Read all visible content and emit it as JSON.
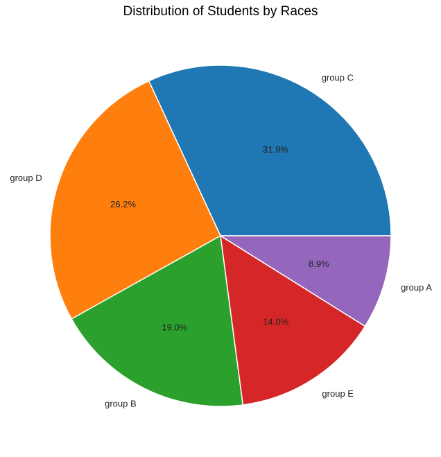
{
  "chart_data": {
    "type": "pie",
    "title": "Distribution of Students by Races",
    "categories": [
      "group C",
      "group D",
      "group B",
      "group E",
      "group A"
    ],
    "values": [
      31.9,
      26.2,
      19.0,
      14.0,
      8.9
    ],
    "percent_labels": [
      "31.9%",
      "26.2%",
      "19.0%",
      "14.0%",
      "8.9%"
    ],
    "colors": [
      "#1f77b4",
      "#ff7f0e",
      "#2ca02c",
      "#d62728",
      "#9467bd"
    ],
    "start_angle_deg": 0,
    "direction": "counterclockwise",
    "legend": "none"
  }
}
